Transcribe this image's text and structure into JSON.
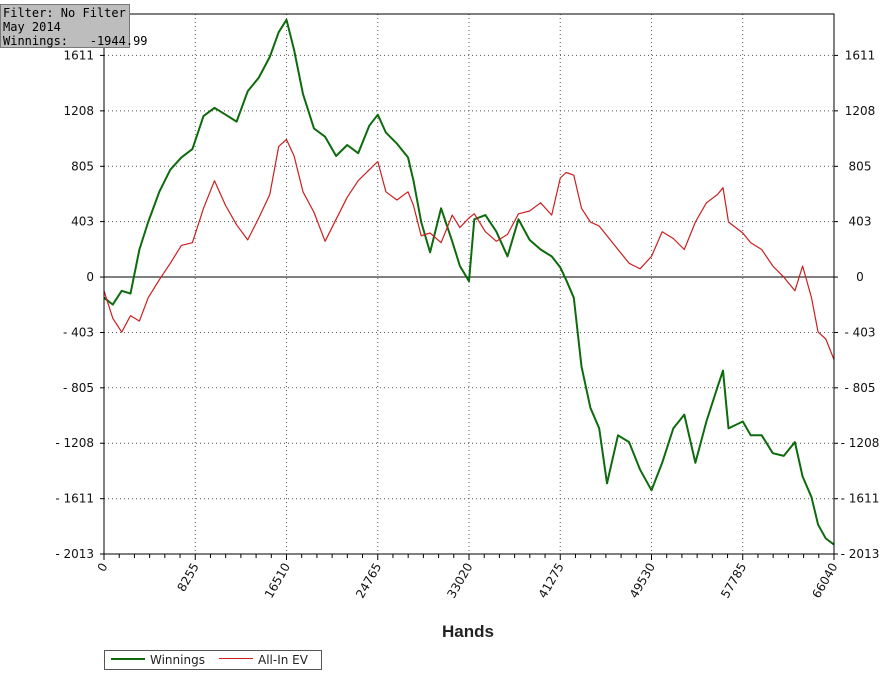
{
  "info": {
    "filter": "Filter: No Filter",
    "period": "May 2014",
    "winnings_label": "Winnings:",
    "winnings_value": "-1944.99"
  },
  "chart_data": {
    "type": "line",
    "title": "",
    "xlabel": "Hands",
    "ylabel": "",
    "xlim": [
      0,
      66040
    ],
    "ylim": [
      -2013,
      1912
    ],
    "x_ticks": [
      "0",
      "8255",
      "16510",
      "24765",
      "33020",
      "41275",
      "49530",
      "57785",
      "66040"
    ],
    "y_ticks": [
      "- 2013",
      "- 1611",
      "- 1208",
      "- 805",
      "- 403",
      "0",
      "403",
      "805",
      "1208",
      "1611"
    ],
    "y_tick_values": [
      -2013,
      -1611,
      -1208,
      -805,
      -403,
      0,
      403,
      805,
      1208,
      1611
    ],
    "grid": true,
    "legend_position": "bottom-left",
    "series": [
      {
        "name": "Winnings",
        "color": "#0d6b0d",
        "x": [
          0,
          800,
          1600,
          2400,
          3200,
          4000,
          5000,
          6000,
          7000,
          8000,
          9000,
          10000,
          11000,
          12000,
          13000,
          14000,
          15000,
          15800,
          16510,
          17200,
          18000,
          19000,
          20000,
          21000,
          22000,
          23000,
          24000,
          24765,
          25500,
          26500,
          27500,
          28000,
          28700,
          29500,
          30500,
          31500,
          32200,
          33020,
          33500,
          34500,
          35500,
          36500,
          37500,
          38500,
          39500,
          40500,
          41275,
          41800,
          42500,
          43200,
          44000,
          44800,
          45500,
          46500,
          47500,
          48500,
          49530,
          50500,
          51500,
          52500,
          53500,
          54500,
          55500,
          56000,
          56500,
          57785,
          58500,
          59500,
          60500,
          61500,
          62500,
          63200,
          64000,
          64600,
          65300,
          66040
        ],
        "values": [
          -150,
          -200,
          -100,
          -120,
          200,
          400,
          620,
          780,
          870,
          930,
          1170,
          1230,
          1180,
          1130,
          1350,
          1450,
          1600,
          1780,
          1870,
          1650,
          1330,
          1080,
          1020,
          880,
          960,
          900,
          1100,
          1180,
          1050,
          970,
          870,
          700,
          400,
          180,
          500,
          260,
          80,
          -30,
          420,
          450,
          330,
          150,
          420,
          270,
          200,
          150,
          70,
          -20,
          -150,
          -650,
          -950,
          -1100,
          -1500,
          -1150,
          -1200,
          -1400,
          -1550,
          -1350,
          -1100,
          -1000,
          -1350,
          -1050,
          -800,
          -680,
          -1100,
          -1050,
          -1150,
          -1150,
          -1280,
          -1300,
          -1200,
          -1450,
          -1600,
          -1800,
          -1900,
          -1945
        ]
      },
      {
        "name": "All-In EV",
        "color": "#cc1f1f",
        "x": [
          0,
          800,
          1600,
          2400,
          3200,
          4000,
          5000,
          6000,
          7000,
          8000,
          9000,
          10000,
          11000,
          12000,
          13000,
          14000,
          15000,
          15800,
          16510,
          17200,
          18000,
          19000,
          20000,
          21000,
          22000,
          23000,
          24000,
          24765,
          25500,
          26500,
          27500,
          28000,
          28700,
          29500,
          30500,
          31500,
          32200,
          33020,
          33500,
          34500,
          35500,
          36500,
          37500,
          38500,
          39500,
          40500,
          41275,
          41800,
          42500,
          43200,
          44000,
          44800,
          45500,
          46500,
          47500,
          48500,
          49530,
          50500,
          51500,
          52500,
          53500,
          54500,
          55500,
          56000,
          56500,
          57785,
          58500,
          59500,
          60500,
          61500,
          62500,
          63200,
          64000,
          64600,
          65300,
          66040
        ],
        "values": [
          -100,
          -300,
          -400,
          -280,
          -320,
          -150,
          -20,
          100,
          230,
          250,
          500,
          700,
          520,
          380,
          270,
          430,
          600,
          950,
          1000,
          880,
          620,
          470,
          260,
          420,
          580,
          700,
          780,
          840,
          620,
          560,
          620,
          520,
          300,
          320,
          250,
          450,
          360,
          430,
          460,
          330,
          260,
          310,
          460,
          480,
          540,
          450,
          720,
          760,
          740,
          500,
          400,
          370,
          300,
          200,
          100,
          60,
          150,
          330,
          280,
          200,
          400,
          540,
          600,
          650,
          400,
          320,
          250,
          200,
          80,
          0,
          -100,
          80,
          -150,
          -400,
          -450,
          -600
        ]
      }
    ]
  }
}
